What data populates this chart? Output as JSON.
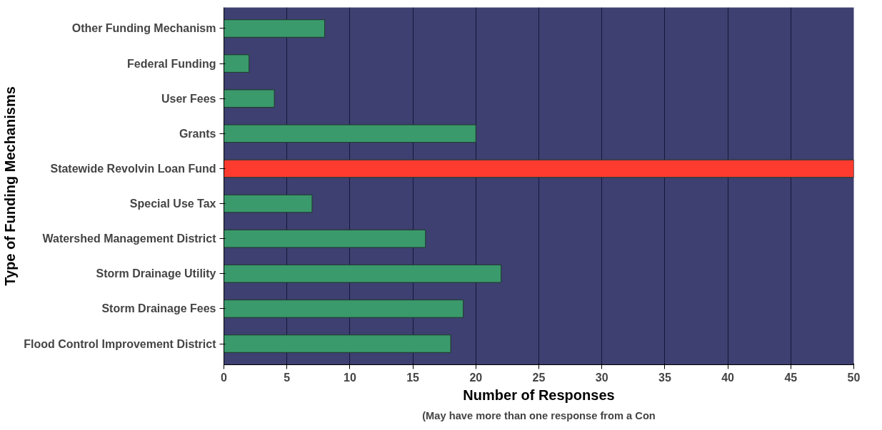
{
  "chart_data": {
    "type": "bar",
    "orientation": "horizontal",
    "categories": [
      "Other Funding Mechanism",
      "Federal Funding",
      "User Fees",
      "Grants",
      "Statewide Revolvin Loan Fund",
      "Special Use Tax",
      "Watershed Management District",
      "Storm Drainage Utility",
      "Storm Drainage Fees",
      "Flood Control Improvement District"
    ],
    "values": [
      8,
      2,
      4,
      20,
      50,
      7,
      16,
      22,
      19,
      18
    ],
    "colors": [
      "#3a9a6c",
      "#3a9a6c",
      "#3a9a6c",
      "#3a9a6c",
      "#ff3b2f",
      "#3a9a6c",
      "#3a9a6c",
      "#3a9a6c",
      "#3a9a6c",
      "#3a9a6c"
    ],
    "xlim": [
      0,
      50
    ],
    "xticks": [
      0,
      5,
      10,
      15,
      20,
      25,
      30,
      35,
      40,
      45,
      50
    ],
    "xlabel": "Number of Responses",
    "ylabel": "Type of Funding Mechanisms",
    "annotations": [
      "(May have more than one response from a Con"
    ],
    "grid": "x"
  }
}
